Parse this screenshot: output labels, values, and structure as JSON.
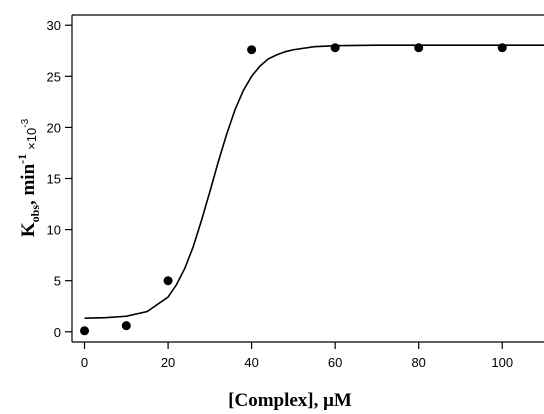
{
  "chart_data": {
    "type": "scatter",
    "xlabel": "[Complex], μM",
    "ylabel": {
      "main": "K",
      "subscript": "obs",
      "rest": ", min",
      "superscript": "-1",
      "multiplier": "×10",
      "multiplier_exponent": "-3"
    },
    "xlim": [
      -3,
      110
    ],
    "ylim": [
      -1,
      31
    ],
    "xticks": [
      0,
      20,
      40,
      60,
      80,
      100
    ],
    "yticks": [
      0,
      5,
      10,
      15,
      20,
      25,
      30
    ],
    "grid": false,
    "series": [
      {
        "kind": "points",
        "x": [
          0,
          10,
          20,
          40,
          60,
          80,
          100
        ],
        "y": [
          0.1,
          0.6,
          5.0,
          27.6,
          27.8,
          27.8,
          27.8
        ],
        "marker": "filled-circle",
        "color": "#000000"
      },
      {
        "kind": "fit-line",
        "x": [
          0,
          5,
          10,
          15,
          20,
          22,
          24,
          26,
          28,
          30,
          32,
          34,
          36,
          38,
          40,
          42,
          44,
          46,
          48,
          50,
          55,
          60,
          70,
          80,
          90,
          100,
          110
        ],
        "y": [
          1.33,
          1.38,
          1.52,
          1.98,
          3.4,
          4.6,
          6.2,
          8.3,
          10.9,
          13.7,
          16.6,
          19.3,
          21.7,
          23.6,
          25.0,
          26.0,
          26.7,
          27.1,
          27.4,
          27.6,
          27.9,
          28.0,
          28.05,
          28.05,
          28.05,
          28.05,
          28.05
        ],
        "color": "#000000"
      }
    ]
  }
}
